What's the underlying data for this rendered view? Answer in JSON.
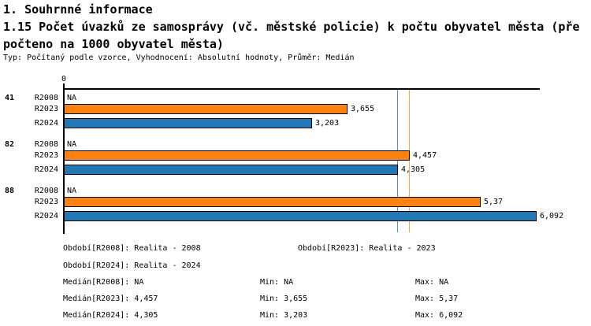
{
  "header": {
    "section_title": "1. Souhrnné informace",
    "indicator_title_line1": "1.15 Počet úvazků ze samosprávy (vč. městské policie) k počtu obyvatel města (pře",
    "indicator_title_line2": "počteno na 1000 obyvatel města)",
    "meta": "Typ: Počítaný podle vzorce, Vyhodnocení: Absolutní hodnoty, Průměr: Medián"
  },
  "chart_data": {
    "type": "bar",
    "orientation": "horizontal",
    "title": "1.15 Počet úvazků ze samosprávy (vč. městské policie) k počtu obyvatel města (přepočteno na 1000 obyvatel města)",
    "axis": {
      "origin_label": "0",
      "xlim": [
        0,
        6.15
      ],
      "grid": false
    },
    "series_labels": [
      "R2008",
      "R2023",
      "R2024"
    ],
    "colors": {
      "bar_R2023": "#FB8112",
      "bar_R2024": "#2278B5",
      "bar_border": "#000000",
      "median_line_R2023": "#FFA045",
      "median_line_R2024": "#4A8FC0"
    },
    "groups": [
      {
        "id": "41",
        "rows": [
          {
            "series": "R2008",
            "value": null,
            "display": "NA"
          },
          {
            "series": "R2023",
            "value": 3.655,
            "display": "3,655"
          },
          {
            "series": "R2024",
            "value": 3.203,
            "display": "3,203"
          }
        ]
      },
      {
        "id": "82",
        "rows": [
          {
            "series": "R2008",
            "value": null,
            "display": "NA"
          },
          {
            "series": "R2023",
            "value": 4.457,
            "display": "4,457"
          },
          {
            "series": "R2024",
            "value": 4.305,
            "display": "4,305"
          }
        ]
      },
      {
        "id": "88",
        "rows": [
          {
            "series": "R2008",
            "value": null,
            "display": "NA"
          },
          {
            "series": "R2023",
            "value": 5.37,
            "display": "5,37"
          },
          {
            "series": "R2024",
            "value": 6.092,
            "display": "6,092"
          }
        ]
      }
    ],
    "median_lines": [
      {
        "series": "R2024",
        "value": 4.305,
        "color": "#4A8FC0"
      },
      {
        "series": "R2023",
        "value": 4.457,
        "color": "#FFA045"
      }
    ],
    "legend_position": "bottom"
  },
  "footer": {
    "lines": [
      {
        "col": 1,
        "row": 1,
        "text": "Období[R2008]: Realita - 2008"
      },
      {
        "col": 2,
        "row": 1,
        "text": "Období[R2023]: Realita - 2023"
      },
      {
        "col": 1,
        "row": 2,
        "text": "Období[R2024]: Realita - 2024"
      },
      {
        "col": 1,
        "row": 3,
        "text": "Medián[R2008]: NA"
      },
      {
        "col": 3,
        "row": 3,
        "text": "Min: NA"
      },
      {
        "col": 4,
        "row": 3,
        "text": "Max: NA"
      },
      {
        "col": 1,
        "row": 4,
        "text": "Medián[R2023]: 4,457"
      },
      {
        "col": 3,
        "row": 4,
        "text": "Min: 3,655"
      },
      {
        "col": 4,
        "row": 4,
        "text": "Max: 5,37"
      },
      {
        "col": 1,
        "row": 5,
        "text": "Medián[R2024]: 4,305"
      },
      {
        "col": 3,
        "row": 5,
        "text": "Min: 3,203"
      },
      {
        "col": 4,
        "row": 5,
        "text": "Max: 6,092"
      }
    ]
  }
}
